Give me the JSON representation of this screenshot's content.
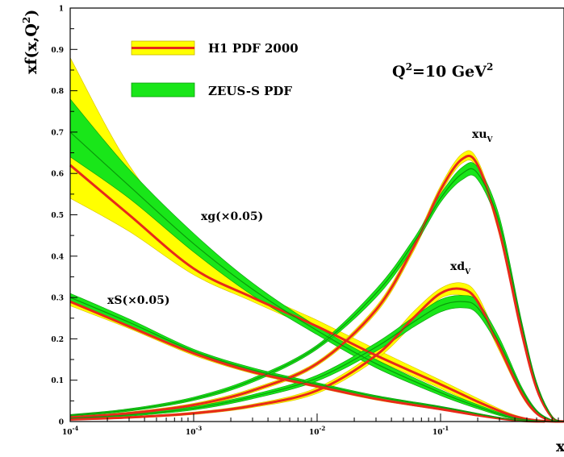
{
  "chart_data": {
    "type": "area",
    "xscale": "log",
    "xlim": [
      0.0001,
      1
    ],
    "ylim": [
      0,
      1
    ],
    "x_ticks": [
      {
        "base": "10",
        "exp": "-4"
      },
      {
        "base": "10",
        "exp": "-3"
      },
      {
        "base": "10",
        "exp": "-2"
      },
      {
        "base": "10",
        "exp": "-1"
      }
    ],
    "y_ticks": [
      "0",
      "0.1",
      "0.2",
      "0.3",
      "0.4",
      "0.5",
      "0.6",
      "0.7",
      "0.8",
      "0.9",
      "1"
    ],
    "xlabel": "x",
    "ylabel": {
      "main": "xf(x,Q",
      "sup": "2",
      "close": ")"
    },
    "annotation": {
      "main": "Q",
      "sup1": "2",
      "mid": "=10 GeV",
      "sup2": "2"
    },
    "curve_labels": [
      {
        "id": "xg",
        "text": "xg(×0.05)"
      },
      {
        "id": "xS",
        "text": "xS(×0.05)"
      },
      {
        "id": "xuv",
        "main": "xu",
        "sub": "V"
      },
      {
        "id": "xdv",
        "main": "xd",
        "sub": "V"
      }
    ],
    "legend": [
      {
        "name": "H1 PDF 2000",
        "fill": "#ffff00",
        "line": "#e8291a"
      },
      {
        "name": "ZEUS-S PDF",
        "fill": "#19e619",
        "line": "#0a9a0a"
      }
    ],
    "series": [
      {
        "name": "H1 PDF 2000",
        "curve": "xg(×0.05)",
        "x": [
          0.0001,
          0.0003,
          0.001,
          0.003,
          0.01,
          0.03,
          0.1,
          0.2,
          0.35,
          0.5,
          0.7,
          0.9
        ],
        "central": [
          0.62,
          0.5,
          0.37,
          0.3,
          0.23,
          0.16,
          0.09,
          0.048,
          0.018,
          0.006,
          0.001,
          0.0
        ],
        "lower": [
          0.54,
          0.46,
          0.355,
          0.29,
          0.22,
          0.15,
          0.08,
          0.04,
          0.014,
          0.004,
          0.0005,
          0.0
        ],
        "upper": [
          0.88,
          0.62,
          0.43,
          0.32,
          0.245,
          0.175,
          0.1,
          0.056,
          0.022,
          0.008,
          0.0015,
          0.0
        ]
      },
      {
        "name": "ZEUS-S PDF",
        "curve": "xg(×0.05)",
        "x": [
          0.0001,
          0.0003,
          0.001,
          0.003,
          0.01,
          0.03,
          0.1,
          0.2,
          0.35,
          0.5,
          0.7,
          0.9
        ],
        "central": [
          0.7,
          0.57,
          0.43,
          0.32,
          0.22,
          0.14,
          0.07,
          0.036,
          0.012,
          0.004,
          0.0005,
          0.0
        ],
        "lower": [
          0.64,
          0.54,
          0.41,
          0.305,
          0.21,
          0.13,
          0.063,
          0.031,
          0.009,
          0.003,
          0.0003,
          0.0
        ],
        "upper": [
          0.78,
          0.61,
          0.455,
          0.335,
          0.23,
          0.15,
          0.077,
          0.041,
          0.015,
          0.005,
          0.0008,
          0.0
        ]
      },
      {
        "name": "H1 PDF 2000",
        "curve": "xS(×0.05)",
        "x": [
          0.0001,
          0.0003,
          0.001,
          0.003,
          0.01,
          0.03,
          0.1,
          0.2,
          0.35,
          0.5,
          0.7
        ],
        "central": [
          0.29,
          0.23,
          0.165,
          0.12,
          0.085,
          0.055,
          0.03,
          0.015,
          0.005,
          0.001,
          0.0
        ],
        "lower": [
          0.28,
          0.225,
          0.16,
          0.116,
          0.082,
          0.052,
          0.028,
          0.013,
          0.004,
          0.0008,
          0.0
        ],
        "upper": [
          0.3,
          0.238,
          0.17,
          0.124,
          0.088,
          0.058,
          0.032,
          0.017,
          0.006,
          0.0015,
          0.0
        ]
      },
      {
        "name": "ZEUS-S PDF",
        "curve": "xS(×0.05)",
        "x": [
          0.0001,
          0.0003,
          0.001,
          0.003,
          0.01,
          0.03,
          0.1,
          0.2,
          0.35,
          0.5,
          0.7
        ],
        "central": [
          0.3,
          0.24,
          0.17,
          0.125,
          0.09,
          0.06,
          0.035,
          0.018,
          0.006,
          0.0015,
          0.0
        ],
        "lower": [
          0.29,
          0.232,
          0.165,
          0.12,
          0.086,
          0.057,
          0.033,
          0.016,
          0.005,
          0.001,
          0.0
        ],
        "upper": [
          0.31,
          0.248,
          0.175,
          0.13,
          0.094,
          0.063,
          0.037,
          0.02,
          0.007,
          0.002,
          0.0
        ]
      },
      {
        "name": "H1 PDF 2000",
        "curve": "xuV",
        "x": [
          0.0001,
          0.0003,
          0.001,
          0.003,
          0.01,
          0.03,
          0.06,
          0.1,
          0.15,
          0.2,
          0.3,
          0.45,
          0.6,
          0.8,
          1.0
        ],
        "central": [
          0.01,
          0.02,
          0.04,
          0.075,
          0.14,
          0.27,
          0.42,
          0.56,
          0.635,
          0.62,
          0.46,
          0.22,
          0.08,
          0.01,
          0.0
        ],
        "lower": [
          0.008,
          0.017,
          0.036,
          0.07,
          0.135,
          0.262,
          0.41,
          0.55,
          0.625,
          0.61,
          0.45,
          0.215,
          0.075,
          0.008,
          0.0
        ],
        "upper": [
          0.012,
          0.023,
          0.044,
          0.08,
          0.145,
          0.278,
          0.43,
          0.57,
          0.648,
          0.632,
          0.47,
          0.225,
          0.085,
          0.012,
          0.0
        ]
      },
      {
        "name": "ZEUS-S PDF",
        "curve": "xuV",
        "x": [
          0.0001,
          0.0003,
          0.001,
          0.003,
          0.01,
          0.03,
          0.06,
          0.1,
          0.15,
          0.2,
          0.3,
          0.45,
          0.6,
          0.8,
          1.0
        ],
        "central": [
          0.015,
          0.028,
          0.055,
          0.1,
          0.18,
          0.31,
          0.43,
          0.54,
          0.6,
          0.6,
          0.48,
          0.24,
          0.09,
          0.012,
          0.0
        ],
        "lower": [
          0.013,
          0.025,
          0.051,
          0.095,
          0.175,
          0.3,
          0.42,
          0.53,
          0.585,
          0.585,
          0.465,
          0.232,
          0.085,
          0.01,
          0.0
        ],
        "upper": [
          0.017,
          0.031,
          0.059,
          0.105,
          0.185,
          0.32,
          0.44,
          0.55,
          0.615,
          0.615,
          0.495,
          0.248,
          0.095,
          0.014,
          0.0
        ]
      },
      {
        "name": "H1 PDF 2000",
        "curve": "xdV",
        "x": [
          0.0001,
          0.0003,
          0.001,
          0.003,
          0.01,
          0.03,
          0.06,
          0.1,
          0.15,
          0.2,
          0.3,
          0.45,
          0.6,
          0.8,
          1.0
        ],
        "central": [
          0.005,
          0.01,
          0.02,
          0.038,
          0.075,
          0.16,
          0.25,
          0.31,
          0.32,
          0.29,
          0.18,
          0.07,
          0.02,
          0.002,
          0.0
        ],
        "lower": [
          0.004,
          0.008,
          0.017,
          0.034,
          0.068,
          0.15,
          0.235,
          0.298,
          0.305,
          0.275,
          0.17,
          0.064,
          0.017,
          0.0015,
          0.0
        ],
        "upper": [
          0.006,
          0.012,
          0.023,
          0.042,
          0.082,
          0.17,
          0.265,
          0.322,
          0.335,
          0.305,
          0.19,
          0.076,
          0.023,
          0.003,
          0.0
        ]
      },
      {
        "name": "ZEUS-S PDF",
        "curve": "xdV",
        "x": [
          0.0001,
          0.0003,
          0.001,
          0.003,
          0.01,
          0.03,
          0.06,
          0.1,
          0.15,
          0.2,
          0.3,
          0.45,
          0.6,
          0.8,
          1.0
        ],
        "central": [
          0.008,
          0.016,
          0.032,
          0.06,
          0.105,
          0.18,
          0.24,
          0.28,
          0.29,
          0.275,
          0.19,
          0.08,
          0.025,
          0.003,
          0.0
        ],
        "lower": [
          0.006,
          0.013,
          0.028,
          0.055,
          0.098,
          0.17,
          0.228,
          0.265,
          0.275,
          0.26,
          0.178,
          0.074,
          0.022,
          0.002,
          0.0
        ],
        "upper": [
          0.01,
          0.019,
          0.036,
          0.065,
          0.112,
          0.19,
          0.252,
          0.295,
          0.305,
          0.29,
          0.202,
          0.086,
          0.028,
          0.004,
          0.0
        ]
      }
    ]
  }
}
